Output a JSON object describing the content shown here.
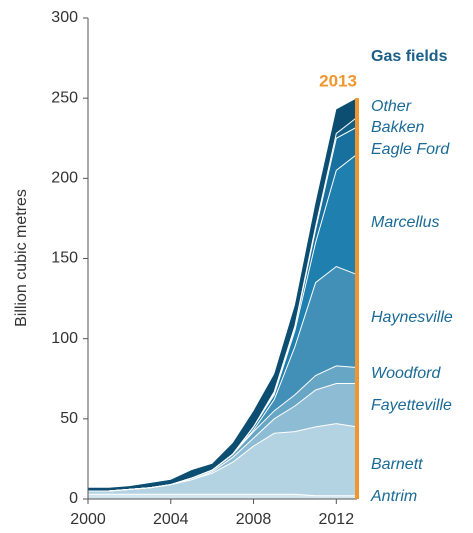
{
  "chart_data": {
    "type": "stacked_area",
    "y_label": "Billion cubic metres",
    "legend_title": "Gas fields",
    "annotations": [
      {
        "x": 2013,
        "label": "2013",
        "color": "#f0962e"
      }
    ],
    "x": [
      2000,
      2001,
      2002,
      2003,
      2004,
      2005,
      2006,
      2007,
      2008,
      2009,
      2010,
      2011,
      2012,
      2013
    ],
    "xlim": [
      2000,
      2013
    ],
    "xticks": [
      2000,
      2004,
      2008,
      2012
    ],
    "ylim": [
      0,
      300
    ],
    "yticks": [
      0,
      50,
      100,
      150,
      200,
      250,
      300
    ],
    "grid": false,
    "series": [
      {
        "name": "Antrim",
        "color": "#d3e5ee",
        "values": [
          3,
          3,
          3,
          3,
          3,
          3,
          3,
          3,
          3,
          3,
          3,
          2,
          2,
          2
        ]
      },
      {
        "name": "Barnett",
        "color": "#b3d2e2",
        "values": [
          2,
          2,
          3,
          4,
          6,
          9,
          13,
          20,
          30,
          38,
          39,
          43,
          45,
          43
        ]
      },
      {
        "name": "Fayetteville",
        "color": "#8dbcd4",
        "values": [
          0,
          0,
          0,
          0,
          0,
          0,
          1,
          3,
          5,
          9,
          16,
          23,
          25,
          27
        ]
      },
      {
        "name": "Woodford",
        "color": "#68a6c6",
        "values": [
          0,
          0,
          0,
          0,
          0,
          1,
          1,
          2,
          4,
          5,
          7,
          9,
          11,
          10
        ]
      },
      {
        "name": "Haynesville",
        "color": "#4290b8",
        "values": [
          0,
          0,
          0,
          0,
          0,
          0,
          0,
          0,
          1,
          7,
          30,
          58,
          62,
          58
        ]
      },
      {
        "name": "Marcellus",
        "color": "#1f7fae",
        "values": [
          0,
          0,
          0,
          0,
          0,
          0,
          0,
          0,
          2,
          3,
          10,
          25,
          60,
          75
        ]
      },
      {
        "name": "Eagle Ford",
        "color": "#17709e",
        "values": [
          0,
          0,
          0,
          0,
          0,
          0,
          0,
          0,
          0,
          1,
          2,
          8,
          20,
          17
        ]
      },
      {
        "name": "Bakken",
        "color": "#125f88",
        "values": [
          0,
          0,
          0,
          0,
          0,
          0,
          0,
          0,
          0,
          1,
          1,
          2,
          3,
          6
        ]
      },
      {
        "name": "Other",
        "color": "#0b4e72",
        "values": [
          2,
          2,
          2,
          3,
          3,
          5,
          4,
          7,
          10,
          11,
          13,
          15,
          15,
          12
        ]
      }
    ]
  }
}
